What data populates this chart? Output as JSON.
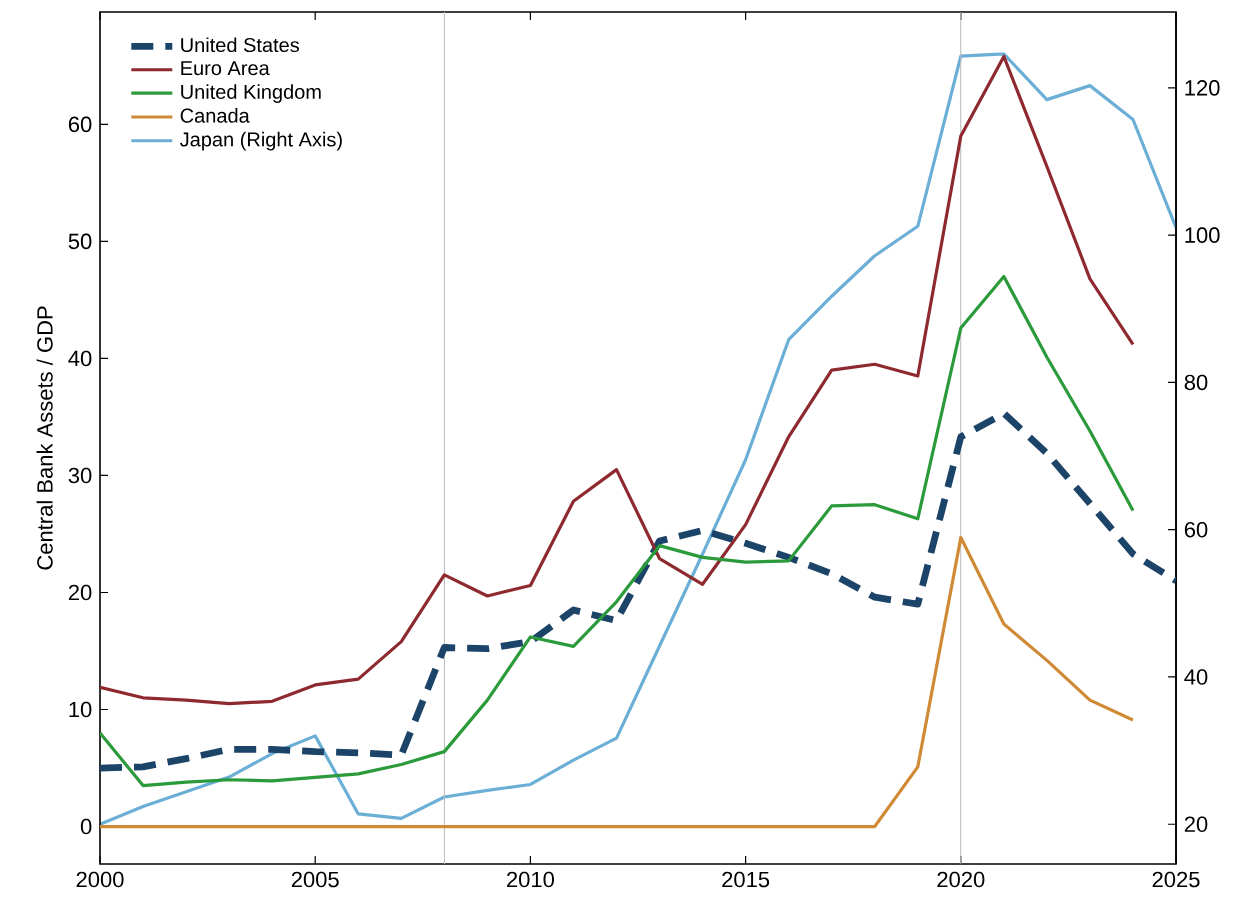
{
  "chart_data": {
    "type": "line",
    "ylabel": "Central Bank Assets / GDP",
    "x": [
      2000,
      2001,
      2002,
      2003,
      2004,
      2005,
      2006,
      2007,
      2008,
      2009,
      2010,
      2011,
      2012,
      2013,
      2014,
      2015,
      2016,
      2017,
      2018,
      2019,
      2020,
      2021,
      2022,
      2023,
      2024,
      2025
    ],
    "series": [
      {
        "name": "United States",
        "color": "#1c4368",
        "line_style": "dashed",
        "values": [
          5.0,
          5.1,
          5.8,
          6.6,
          6.6,
          6.4,
          6.3,
          6.1,
          15.3,
          15.2,
          15.8,
          18.5,
          17.6,
          24.4,
          25.3,
          24.2,
          23.0,
          21.6,
          19.6,
          19.0,
          33.3,
          35.3,
          31.9,
          27.6,
          23.3,
          21.0
        ]
      },
      {
        "name": "Euro Area",
        "color": "#8e2a2f",
        "line_style": "solid",
        "values": [
          11.9,
          11.0,
          10.8,
          10.5,
          10.7,
          12.1,
          12.6,
          15.8,
          21.5,
          19.7,
          20.6,
          27.8,
          30.5,
          22.9,
          20.7,
          25.8,
          33.3,
          39.0,
          39.5,
          38.5,
          59.0,
          65.8,
          56.4,
          46.8,
          41.2,
          null
        ]
      },
      {
        "name": "United Kingdom",
        "color": "#2a9a3a",
        "line_style": "solid",
        "values": [
          8.0,
          3.5,
          3.8,
          4.0,
          3.9,
          4.2,
          4.5,
          5.3,
          6.4,
          10.8,
          16.2,
          15.4,
          19.2,
          24.0,
          23.0,
          22.6,
          22.7,
          27.4,
          27.5,
          26.3,
          42.6,
          47.0,
          40.1,
          33.8,
          27.0,
          null
        ]
      },
      {
        "name": "Canada",
        "color": "#d08a35",
        "line_style": "solid",
        "values": [
          0,
          0,
          0,
          0,
          0,
          0,
          0,
          0,
          0,
          0,
          0,
          0,
          0,
          0,
          0,
          0,
          0,
          0,
          0,
          5.1,
          24.7,
          17.3,
          14.2,
          10.8,
          9.1,
          null
        ]
      },
      {
        "name": "Japan (Right Axis)",
        "color": "#6baed6",
        "line_style": "solid",
        "axis": "y2",
        "values": [
          20.0,
          22.4,
          24.4,
          26.4,
          29.6,
          32.0,
          21.4,
          20.8,
          23.7,
          24.6,
          25.4,
          28.7,
          31.7,
          44.2,
          56.7,
          69.5,
          85.8,
          91.7,
          97.2,
          101.2,
          124.3,
          124.6,
          118.4,
          120.3,
          115.7,
          101.0
        ]
      }
    ],
    "xlim": [
      2000,
      2025
    ],
    "xticks": [
      2000,
      2005,
      2010,
      2015,
      2020,
      2025
    ],
    "ylim": [
      -3.2,
      69.6
    ],
    "yticks": [
      0,
      10,
      20,
      30,
      40,
      50,
      60
    ],
    "y2lim": [
      14.6,
      130.3
    ],
    "y2ticks": [
      20,
      40,
      60,
      80,
      100,
      120
    ],
    "ref_lines": [
      {
        "axis": "x",
        "value": 2008,
        "color": "#bbbbbb"
      },
      {
        "axis": "x",
        "value": 2020,
        "color": "#bbbbbb"
      }
    ],
    "grid": false,
    "legend": "top left"
  }
}
